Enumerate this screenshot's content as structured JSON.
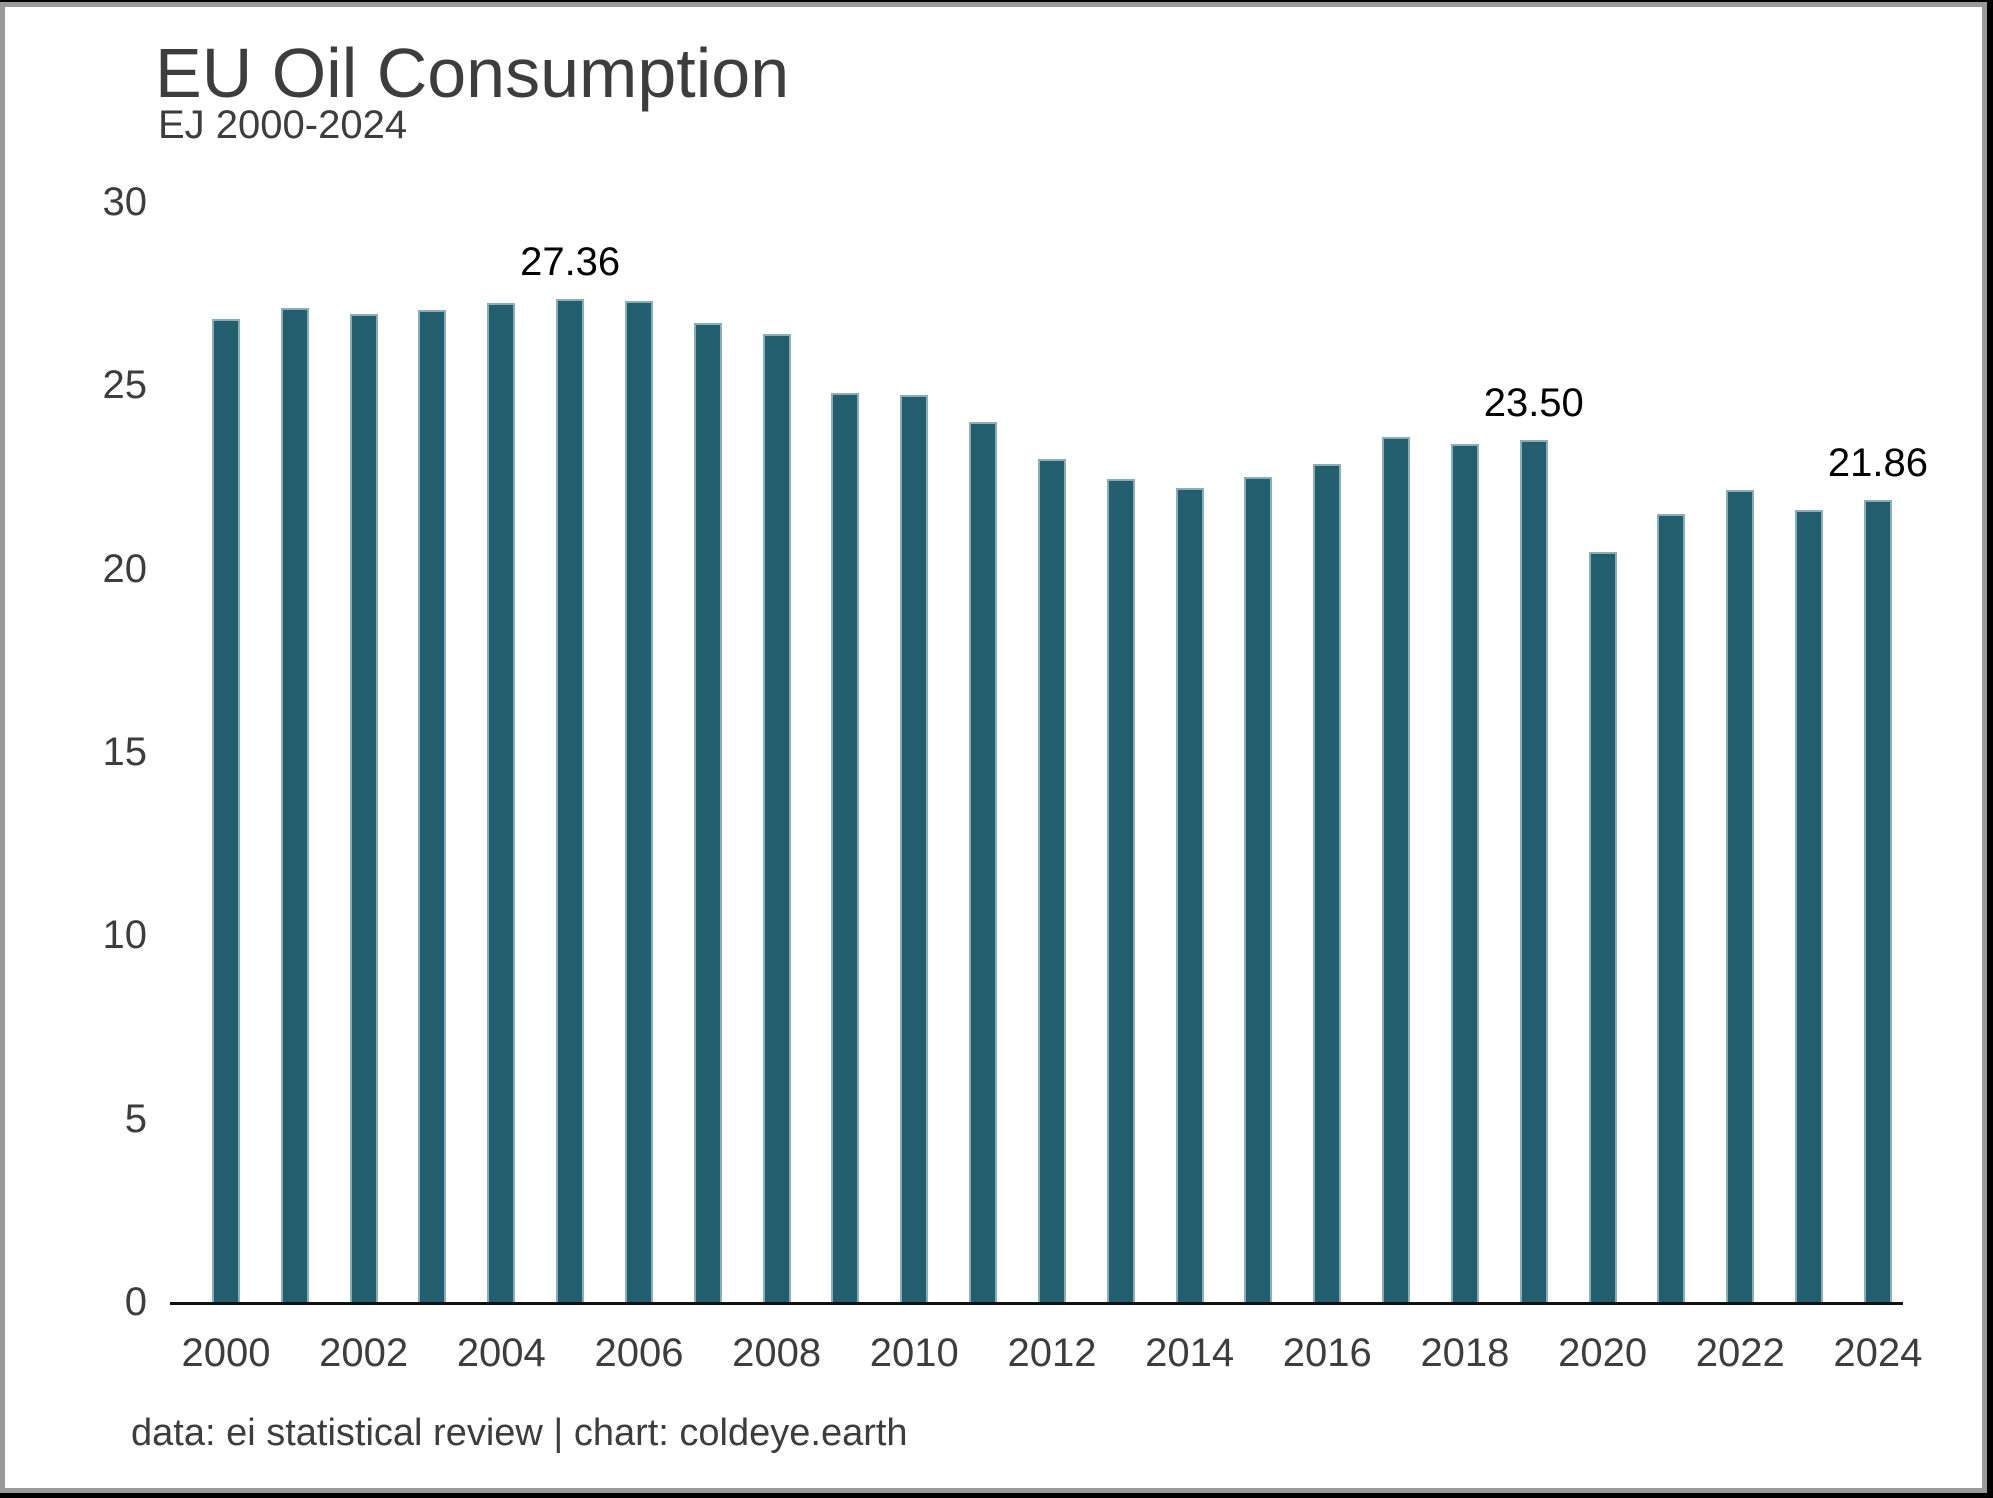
{
  "header": {
    "title": "EU Oil Consumption",
    "subtitle": "EJ 2000-2024"
  },
  "footer": {
    "credit": "data: ei statistical review | chart: coldeye.earth"
  },
  "chart_data": {
    "type": "bar",
    "title": "EU Oil Consumption",
    "subtitle": "EJ 2000-2024",
    "unit": "EJ",
    "categories": [
      2000,
      2001,
      2002,
      2003,
      2004,
      2005,
      2006,
      2007,
      2008,
      2009,
      2010,
      2011,
      2012,
      2013,
      2014,
      2015,
      2016,
      2017,
      2018,
      2019,
      2020,
      2021,
      2022,
      2023,
      2024
    ],
    "values": [
      26.8,
      27.1,
      26.95,
      27.05,
      27.25,
      27.36,
      27.3,
      26.7,
      26.4,
      24.8,
      24.75,
      24.0,
      23.0,
      22.45,
      22.2,
      22.5,
      22.85,
      23.6,
      23.4,
      23.5,
      20.45,
      21.5,
      22.15,
      21.6,
      21.86
    ],
    "data_labels": [
      {
        "category": 2005,
        "text": "27.36"
      },
      {
        "category": 2019,
        "text": "23.50"
      },
      {
        "category": 2024,
        "text": "21.86"
      }
    ],
    "ylim": [
      0,
      30
    ],
    "yticks": [
      0,
      5,
      10,
      15,
      20,
      25,
      30
    ],
    "xticks": [
      2000,
      2002,
      2004,
      2006,
      2008,
      2010,
      2012,
      2014,
      2016,
      2018,
      2020,
      2022,
      2024
    ],
    "grid": false,
    "legend": false,
    "bar_color": "#235e6f",
    "bar_edge_color": "#8badb7",
    "axis_line_color": "#111111",
    "tick_label_color": "#3d3d3d",
    "annotation_color": "#000000"
  }
}
